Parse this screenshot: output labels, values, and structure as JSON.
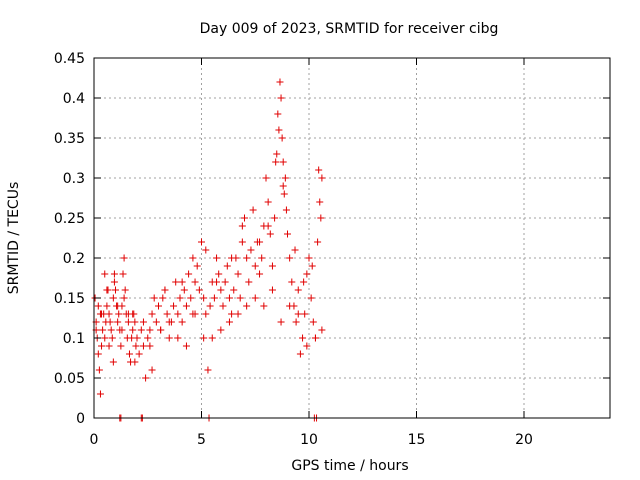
{
  "chart_data": {
    "type": "scatter",
    "title": "Day 009 of 2023, SRMTID for receiver cibg",
    "xlabel": "GPS time / hours",
    "ylabel": "SRMTID / TECUs",
    "xlim": [
      0,
      24
    ],
    "ylim": [
      0,
      0.45
    ],
    "xticks": [
      0,
      5,
      10,
      15,
      20
    ],
    "yticks": [
      0,
      0.05,
      0.1,
      0.15,
      0.2,
      0.25,
      0.3,
      0.35,
      0.4,
      0.45
    ],
    "grid": true,
    "marker": "plus",
    "marker_color": "#e00000",
    "series": [
      {
        "x": [
          0.05,
          0.1,
          0.15,
          0.2,
          0.25,
          0.3,
          0.35,
          0.4,
          0.45,
          0.5,
          0.55,
          0.6,
          0.65,
          0.7,
          0.75,
          0.8,
          0.85,
          0.9,
          0.95,
          1.0,
          1.05,
          1.1,
          1.15,
          1.2,
          1.25,
          1.3,
          1.35,
          1.4,
          1.45,
          1.5,
          1.55,
          1.6,
          1.65,
          1.7,
          1.75,
          1.8,
          1.85,
          1.9,
          1.95,
          2.0,
          2.1,
          2.2,
          2.3,
          2.4,
          2.5,
          2.6,
          2.7,
          2.8,
          2.9,
          3.0,
          3.1,
          3.2,
          3.3,
          3.4,
          3.5,
          3.6,
          3.7,
          3.8,
          3.9,
          4.0,
          4.1,
          4.2,
          4.3,
          4.4,
          4.5,
          4.6,
          4.7,
          4.8,
          4.9,
          5.0,
          5.1,
          5.2,
          5.3,
          5.4,
          5.5,
          5.6,
          5.7,
          5.8,
          5.9,
          6.0,
          6.1,
          6.2,
          6.3,
          6.4,
          6.5,
          6.6,
          6.7,
          6.8,
          6.9,
          7.0,
          7.1,
          7.2,
          7.3,
          7.4,
          7.5,
          7.6,
          7.7,
          7.8,
          7.9,
          8.0,
          8.1,
          8.2,
          8.3,
          8.4,
          8.5,
          8.55,
          8.6,
          8.65,
          8.7,
          8.75,
          8.8,
          8.85,
          8.9,
          8.95,
          9.0,
          9.1,
          9.2,
          9.3,
          9.4,
          9.5,
          9.6,
          9.7,
          9.8,
          9.9,
          10.0,
          10.1,
          10.2,
          10.3,
          10.4,
          10.5,
          10.6,
          0.1,
          0.3,
          0.5,
          0.7,
          0.9,
          1.1,
          1.3,
          1.6,
          1.9,
          2.3,
          2.7,
          3.1,
          3.5,
          3.9,
          4.3,
          4.7,
          5.1,
          5.5,
          5.9,
          6.3,
          6.7,
          7.1,
          7.5,
          7.9,
          8.3,
          8.7,
          9.1,
          9.5,
          9.9,
          10.3,
          10.6,
          1.2,
          1.25,
          2.2,
          2.25,
          5.35,
          10.25,
          10.35,
          0.2,
          0.35,
          0.6,
          0.95,
          1.4,
          1.8,
          2.6,
          3.3,
          4.1,
          4.6,
          5.2,
          5.7,
          6.4,
          6.9,
          7.7,
          8.1,
          8.45,
          8.8,
          9.35,
          9.75,
          10.15,
          10.45,
          10.55
        ],
        "y": [
          0.15,
          0.12,
          0.1,
          0.08,
          0.06,
          0.03,
          0.09,
          0.11,
          0.13,
          0.1,
          0.12,
          0.14,
          0.16,
          0.13,
          0.12,
          0.11,
          0.1,
          0.15,
          0.17,
          0.16,
          0.14,
          0.12,
          0.13,
          0.11,
          0.09,
          0.14,
          0.18,
          0.2,
          0.16,
          0.13,
          0.1,
          0.12,
          0.08,
          0.07,
          0.1,
          0.11,
          0.13,
          0.12,
          0.09,
          0.1,
          0.08,
          0.11,
          0.12,
          0.05,
          0.1,
          0.09,
          0.13,
          0.15,
          0.12,
          0.14,
          0.11,
          0.15,
          0.16,
          0.13,
          0.1,
          0.12,
          0.14,
          0.17,
          0.13,
          0.15,
          0.12,
          0.16,
          0.14,
          0.18,
          0.15,
          0.13,
          0.17,
          0.19,
          0.16,
          0.22,
          0.15,
          0.13,
          0.06,
          0.14,
          0.17,
          0.15,
          0.2,
          0.18,
          0.16,
          0.14,
          0.17,
          0.19,
          0.15,
          0.13,
          0.16,
          0.2,
          0.18,
          0.15,
          0.22,
          0.25,
          0.2,
          0.17,
          0.21,
          0.26,
          0.19,
          0.22,
          0.18,
          0.2,
          0.24,
          0.3,
          0.27,
          0.23,
          0.19,
          0.25,
          0.33,
          0.38,
          0.36,
          0.42,
          0.4,
          0.35,
          0.32,
          0.28,
          0.3,
          0.26,
          0.23,
          0.2,
          0.17,
          0.14,
          0.12,
          0.16,
          0.08,
          0.1,
          0.13,
          0.18,
          0.2,
          0.15,
          0.12,
          0.1,
          0.22,
          0.27,
          0.3,
          0.11,
          0.13,
          0.18,
          0.09,
          0.07,
          0.14,
          0.11,
          0.13,
          0.07,
          0.09,
          0.06,
          0.11,
          0.12,
          0.1,
          0.09,
          0.13,
          0.1,
          0.1,
          0.11,
          0.12,
          0.13,
          0.14,
          0.15,
          0.14,
          0.16,
          0.12,
          0.14,
          0.13,
          0.09,
          0.1,
          0.11,
          0.0,
          0.0,
          0.0,
          0.0,
          0.0,
          0.0,
          0.0,
          0.14,
          0.13,
          0.16,
          0.18,
          0.15,
          0.13,
          0.11,
          0.16,
          0.17,
          0.2,
          0.21,
          0.17,
          0.2,
          0.24,
          0.22,
          0.24,
          0.32,
          0.29,
          0.21,
          0.17,
          0.19,
          0.31,
          0.25
        ]
      }
    ]
  }
}
